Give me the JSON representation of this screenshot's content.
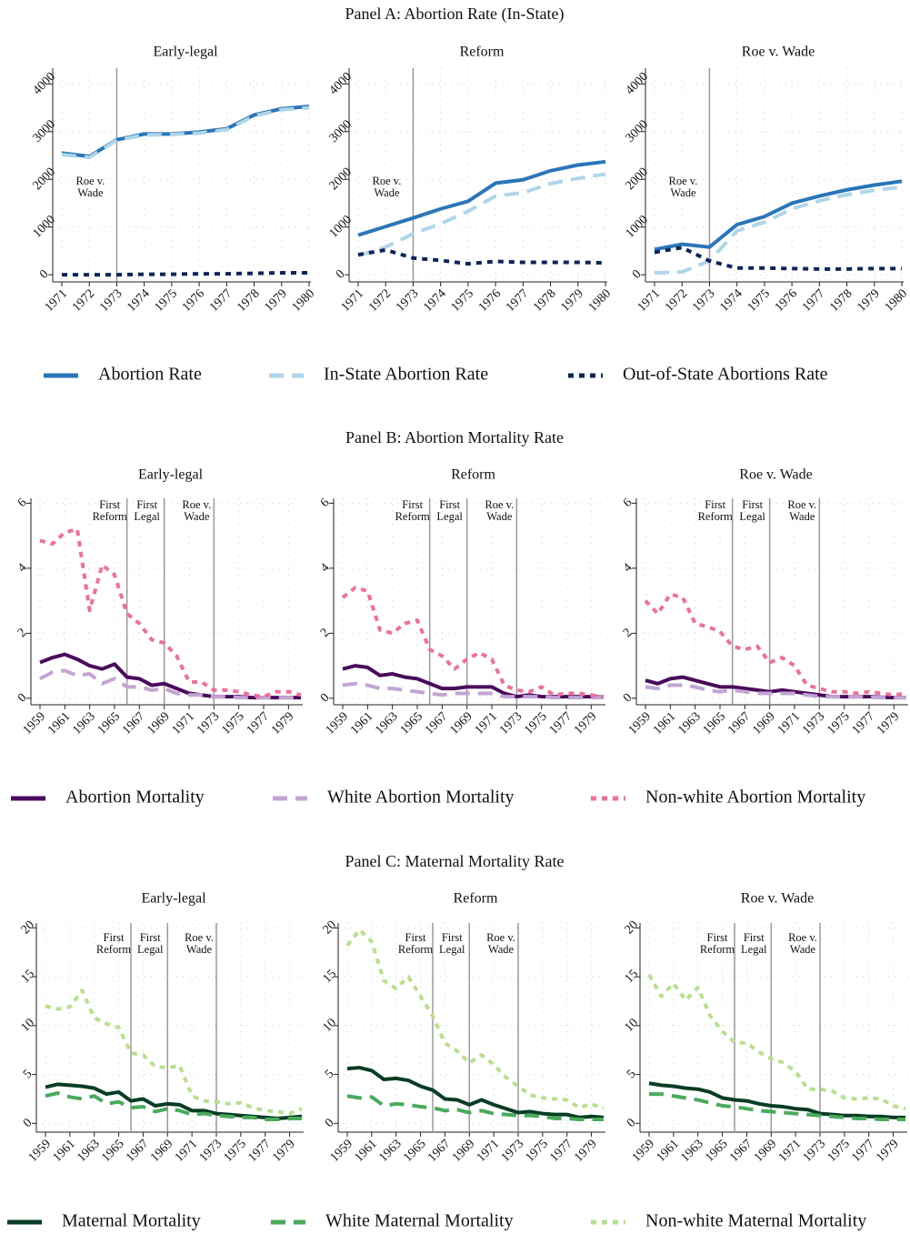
{
  "chart_data": [
    {
      "type": "line",
      "title": "Panel A: Abortion Rate (In-State)",
      "subplots": [
        "Early-legal",
        "Reform",
        "Roe v. Wade"
      ],
      "x": [
        1971,
        1972,
        1973,
        1974,
        1975,
        1976,
        1977,
        1978,
        1979,
        1980
      ],
      "xlim": [
        1971,
        1980
      ],
      "xticks": [
        1971,
        1972,
        1973,
        1974,
        1975,
        1976,
        1977,
        1978,
        1979,
        1980
      ],
      "ylim": [
        -150,
        4330
      ],
      "yticks": [
        0,
        1000,
        2000,
        3000,
        4000
      ],
      "grid": true,
      "vlines": [
        {
          "x": 1973,
          "label": [
            "Roe v.",
            "Wade"
          ]
        }
      ],
      "series": [
        {
          "name": "Abortion Rate",
          "color": "#2a76b8",
          "style": "solid",
          "values": [
            [
              2550,
              2480,
              2830,
              2950,
              2950,
              2990,
              3060,
              3350,
              3480,
              3530
            ],
            [
              830,
              1010,
              1190,
              1380,
              1540,
              1920,
              1990,
              2180,
              2300,
              2370
            ],
            [
              530,
              640,
              580,
              1050,
              1220,
              1500,
              1650,
              1780,
              1880,
              1960
            ]
          ]
        },
        {
          "name": "In-State Abortion Rate",
          "color": "#aed6e8",
          "style": "dashed",
          "values": [
            [
              2520,
              2460,
              2820,
              2930,
              2940,
              2970,
              3040,
              3330,
              3460,
              3500
            ],
            [
              400,
              580,
              860,
              1070,
              1330,
              1650,
              1720,
              1910,
              2020,
              2110
            ],
            [
              40,
              60,
              290,
              920,
              1100,
              1380,
              1550,
              1680,
              1770,
              1840
            ]
          ]
        },
        {
          "name": "Out-of-State Abortions Rate",
          "color": "#0d2559",
          "style": "dotted",
          "values": [
            [
              0,
              0,
              0,
              10,
              10,
              20,
              20,
              30,
              40,
              40
            ],
            [
              420,
              520,
              350,
              300,
              230,
              280,
              260,
              260,
              260,
              250
            ],
            [
              470,
              570,
              290,
              140,
              140,
              130,
              120,
              120,
              130,
              130
            ]
          ]
        }
      ]
    },
    {
      "type": "line",
      "title": "Panel B: Abortion Mortality Rate",
      "subplots": [
        "Early-legal",
        "Reform",
        "Roe v. Wade"
      ],
      "x": [
        1959,
        1960,
        1961,
        1962,
        1963,
        1964,
        1965,
        1966,
        1967,
        1968,
        1969,
        1970,
        1971,
        1972,
        1973,
        1974,
        1975,
        1976,
        1977,
        1978,
        1979,
        1980
      ],
      "xlim": [
        1959,
        1980
      ],
      "xticks": [
        1959,
        1961,
        1963,
        1965,
        1967,
        1969,
        1971,
        1973,
        1975,
        1977,
        1979
      ],
      "ylim": [
        -0.2,
        6.15
      ],
      "yticks": [
        0,
        2,
        4,
        6
      ],
      "grid": true,
      "vlines": [
        {
          "x": 1966,
          "label": [
            "First",
            "Reform"
          ]
        },
        {
          "x": 1969,
          "label": [
            "First",
            "Legal"
          ]
        },
        {
          "x": 1973,
          "label": [
            "Roe v.",
            "Wade"
          ]
        }
      ],
      "series": [
        {
          "name": "Abortion Mortality",
          "color": "#4a0b5c",
          "style": "solid",
          "values": [
            [
              1.1,
              1.25,
              1.35,
              1.2,
              1.0,
              0.9,
              1.05,
              0.65,
              0.6,
              0.4,
              0.45,
              0.3,
              0.15,
              0.1,
              0.05,
              0.05,
              0.05,
              0.02,
              0.02,
              0.02,
              0.02,
              0.02
            ],
            [
              0.9,
              1.0,
              0.95,
              0.7,
              0.75,
              0.65,
              0.6,
              0.45,
              0.3,
              0.3,
              0.35,
              0.35,
              0.35,
              0.15,
              0.05,
              0.1,
              0.05,
              0.05,
              0.05,
              0.05,
              0.05,
              0.03
            ],
            [
              0.55,
              0.45,
              0.6,
              0.65,
              0.55,
              0.45,
              0.35,
              0.35,
              0.3,
              0.25,
              0.2,
              0.25,
              0.2,
              0.15,
              0.1,
              0.05,
              0.05,
              0.05,
              0.05,
              0.03,
              0.02,
              0.02
            ]
          ]
        },
        {
          "name": "White Abortion Mortality",
          "color": "#c2a5d3",
          "style": "dashed",
          "values": [
            [
              0.6,
              0.8,
              0.85,
              0.7,
              0.75,
              0.45,
              0.6,
              0.35,
              0.35,
              0.25,
              0.3,
              0.15,
              0.1,
              0.1,
              0.05,
              0.05,
              0.02,
              0.02,
              0.02,
              0.02,
              0.02,
              0.02
            ],
            [
              0.4,
              0.45,
              0.4,
              0.3,
              0.3,
              0.25,
              0.2,
              0.15,
              0.1,
              0.15,
              0.15,
              0.15,
              0.15,
              0.05,
              0.05,
              0.05,
              0.05,
              0.02,
              0.02,
              0.02,
              0.02,
              0.02
            ],
            [
              0.35,
              0.3,
              0.4,
              0.4,
              0.35,
              0.25,
              0.2,
              0.25,
              0.2,
              0.15,
              0.15,
              0.15,
              0.15,
              0.1,
              0.05,
              0.05,
              0.05,
              0.05,
              0.03,
              0.02,
              0.02,
              0.02
            ]
          ]
        },
        {
          "name": "Non-white Abortion Mortality",
          "color": "#ef6f9c",
          "style": "dotted",
          "values": [
            [
              4.85,
              4.75,
              5.1,
              5.2,
              2.7,
              4.1,
              3.8,
              2.6,
              2.3,
              1.8,
              1.7,
              1.3,
              0.5,
              0.5,
              0.25,
              0.25,
              0.2,
              0.1,
              0.05,
              0.2,
              0.2,
              0.1
            ],
            [
              3.1,
              3.4,
              3.3,
              2.1,
              2.0,
              2.3,
              2.4,
              1.5,
              1.3,
              0.9,
              1.2,
              1.4,
              1.2,
              0.4,
              0.25,
              0.2,
              0.35,
              0.1,
              0.15,
              0.15,
              0.1,
              0.05
            ],
            [
              3.0,
              2.6,
              3.2,
              3.1,
              2.3,
              2.2,
              2.05,
              1.6,
              1.5,
              1.6,
              1.1,
              1.25,
              1.0,
              0.4,
              0.3,
              0.2,
              0.2,
              0.15,
              0.2,
              0.15,
              0.1,
              0.15
            ]
          ]
        }
      ]
    },
    {
      "type": "line",
      "title": "Panel C: Maternal Mortality Rate",
      "subplots": [
        "Early-legal",
        "Reform",
        "Roe v. Wade"
      ],
      "x": [
        1959,
        1960,
        1961,
        1962,
        1963,
        1964,
        1965,
        1966,
        1967,
        1968,
        1969,
        1970,
        1971,
        1972,
        1973,
        1974,
        1975,
        1976,
        1977,
        1978,
        1979,
        1980
      ],
      "xlim": [
        1959,
        1980
      ],
      "xticks": [
        1959,
        1961,
        1963,
        1965,
        1967,
        1969,
        1971,
        1973,
        1975,
        1977,
        1979
      ],
      "ylim": [
        -0.9,
        20.5
      ],
      "yticks": [
        0,
        5,
        10,
        15,
        20
      ],
      "grid": true,
      "vlines": [
        {
          "x": 1966,
          "label": [
            "First",
            "Reform"
          ]
        },
        {
          "x": 1969,
          "label": [
            "First",
            "Legal"
          ]
        },
        {
          "x": 1973,
          "label": [
            "Roe v.",
            "Wade"
          ]
        }
      ],
      "series": [
        {
          "name": "Maternal Mortality",
          "color": "#073d24",
          "style": "solid",
          "values": [
            [
              3.7,
              4.0,
              3.9,
              3.8,
              3.6,
              3.0,
              3.2,
              2.3,
              2.5,
              1.8,
              2.0,
              1.9,
              1.3,
              1.3,
              1.0,
              0.9,
              0.8,
              0.7,
              0.6,
              0.5,
              0.6,
              0.7
            ],
            [
              5.6,
              5.7,
              5.4,
              4.5,
              4.6,
              4.4,
              3.8,
              3.4,
              2.5,
              2.4,
              1.9,
              2.4,
              1.9,
              1.5,
              1.1,
              1.2,
              1.0,
              0.9,
              0.9,
              0.6,
              0.7,
              0.6
            ],
            [
              4.1,
              3.9,
              3.8,
              3.6,
              3.5,
              3.2,
              2.6,
              2.4,
              2.3,
              2.0,
              1.8,
              1.7,
              1.5,
              1.4,
              1.0,
              0.9,
              0.8,
              0.8,
              0.7,
              0.7,
              0.6,
              0.6
            ]
          ]
        },
        {
          "name": "White Maternal Mortality",
          "color": "#4aaa5c",
          "style": "dashed",
          "values": [
            [
              2.8,
              3.1,
              2.7,
              2.5,
              2.8,
              2.0,
              2.2,
              1.6,
              1.7,
              1.2,
              1.5,
              1.3,
              0.9,
              1.0,
              0.8,
              0.7,
              0.6,
              0.6,
              0.4,
              0.4,
              0.5,
              0.5
            ],
            [
              2.8,
              2.6,
              2.7,
              1.8,
              2.0,
              1.9,
              1.7,
              1.6,
              1.3,
              1.4,
              1.1,
              1.3,
              1.0,
              0.9,
              0.8,
              0.8,
              0.7,
              0.5,
              0.5,
              0.4,
              0.4,
              0.4
            ],
            [
              3.0,
              3.0,
              2.8,
              2.6,
              2.4,
              2.1,
              1.8,
              1.7,
              1.5,
              1.3,
              1.2,
              1.1,
              1.0,
              0.9,
              0.8,
              0.7,
              0.6,
              0.5,
              0.5,
              0.4,
              0.4,
              0.4
            ]
          ]
        },
        {
          "name": "Non-white Maternal Mortality",
          "color": "#b8e08e",
          "style": "dotted",
          "values": [
            [
              12.0,
              11.7,
              11.9,
              13.6,
              10.8,
              10.2,
              9.8,
              7.2,
              7.0,
              5.8,
              5.7,
              5.9,
              2.8,
              2.3,
              2.2,
              2.0,
              2.1,
              1.6,
              1.3,
              1.2,
              1.0,
              1.5
            ],
            [
              18.2,
              19.8,
              18.6,
              14.6,
              13.8,
              15.0,
              13.0,
              11.0,
              8.2,
              7.4,
              6.2,
              7.0,
              6.0,
              4.7,
              3.8,
              2.9,
              2.6,
              2.5,
              2.4,
              1.6,
              2.0,
              1.5
            ],
            [
              15.2,
              13.0,
              14.3,
              12.6,
              13.9,
              11.0,
              9.4,
              8.3,
              8.2,
              7.3,
              6.6,
              6.2,
              5.3,
              3.5,
              3.5,
              3.3,
              2.6,
              2.5,
              2.6,
              2.5,
              1.8,
              1.5
            ]
          ]
        }
      ]
    }
  ]
}
